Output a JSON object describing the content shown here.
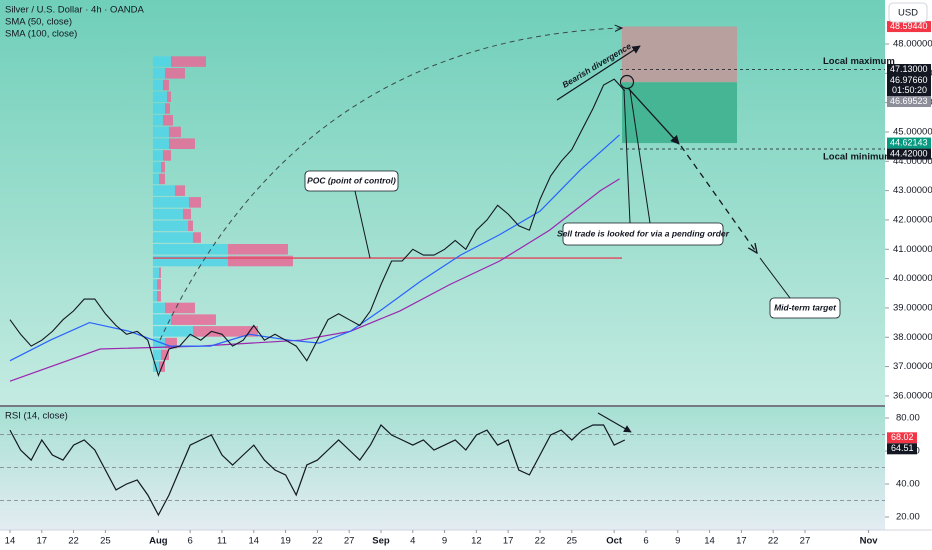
{
  "chart_data": [
    {
      "type": "line",
      "title": "Silver / U.S. Dollar · 4h · OANDA",
      "currency": "USD",
      "x": [
        0,
        1,
        2,
        3,
        4,
        5,
        6,
        7,
        8,
        9,
        10,
        11,
        12,
        13,
        14,
        15,
        16,
        17,
        18,
        19,
        20,
        21,
        22,
        23,
        24,
        25,
        26,
        27,
        28,
        29,
        30,
        31,
        32,
        33,
        34,
        35,
        36,
        37,
        38,
        39,
        40,
        41,
        42,
        43,
        44,
        45,
        46,
        47,
        48,
        49,
        50,
        51,
        52,
        53,
        54,
        55,
        56,
        57,
        58
      ],
      "series": [
        {
          "color": "#131722",
          "values": [
            38.6,
            38.1,
            37.7,
            37.9,
            38.2,
            38.6,
            38.9,
            39.3,
            39.3,
            38.8,
            38.4,
            38.1,
            38.2,
            37.9,
            36.7,
            37.6,
            37.7,
            38.1,
            37.9,
            38.2,
            38.1,
            37.7,
            37.9,
            38.4,
            37.9,
            38.1,
            37.9,
            37.7,
            37.2,
            37.9,
            38.6,
            38.8,
            38.6,
            38.4,
            38.9,
            39.8,
            40.6,
            40.6,
            41.0,
            40.8,
            40.8,
            41.0,
            41.3,
            41.0,
            41.65,
            42.0,
            42.5,
            42.2,
            41.8,
            41.65,
            42.7,
            43.5,
            44.0,
            44.4,
            45.1,
            45.8,
            46.6,
            46.8,
            46.4
          ]
        },
        {
          "name": "SMA (50, close)",
          "color": "#2962ff",
          "x": [
            0,
            3.8,
            7.5,
            11.3,
            15.1,
            18.9,
            22.6,
            26.4,
            29.2,
            32.1,
            34.9,
            38.7,
            42.5,
            46.2,
            50,
            53.8,
            57.5
          ],
          "values": [
            37.2,
            37.9,
            38.5,
            38.2,
            37.7,
            37.7,
            38.1,
            37.9,
            37.8,
            38.2,
            38.9,
            39.9,
            40.8,
            41.5,
            42.3,
            43.7,
            44.9
          ]
        },
        {
          "name": "SMA (100, close)",
          "color": "#9c27b0",
          "x": [
            0,
            8.5,
            17.9,
            27.4,
            32.1,
            36.8,
            41.5,
            46.2,
            50.9,
            55.7,
            57.5
          ],
          "values": [
            36.5,
            37.6,
            37.7,
            37.9,
            38.2,
            38.9,
            39.8,
            40.6,
            41.65,
            43.0,
            43.4
          ]
        }
      ],
      "xlim": [
        -0.94,
        82.55
      ],
      "ylim": [
        35.69,
        49.5
      ],
      "yticks": [
        {
          "value": 36,
          "label": "36.00000"
        },
        {
          "value": 37,
          "label": "37.00000"
        },
        {
          "value": 38,
          "label": "38.00000"
        },
        {
          "value": 39,
          "label": "39.00000"
        },
        {
          "value": 40,
          "label": "40.00000"
        },
        {
          "value": 41,
          "label": "41.00000"
        },
        {
          "value": 42,
          "label": "42.00000"
        },
        {
          "value": 43,
          "label": "43.00000"
        },
        {
          "value": 44,
          "label": "44.00000"
        },
        {
          "value": 45,
          "label": "45.00000"
        },
        {
          "value": 46,
          "label": "46.00000"
        },
        {
          "value": 47,
          "label": "47.00000"
        },
        {
          "value": 48,
          "label": "48.00000"
        }
      ],
      "last_price": {
        "value": 46.9766,
        "label": "46.97660",
        "tag_color": "#131722"
      },
      "countdown": "01:50:20",
      "levels": [
        {
          "name": "Local maximum",
          "value": 47.13,
          "label": "47.13000",
          "tag_color": "#131722"
        },
        {
          "name": "Local minimum",
          "value": 44.42,
          "label": "44.42000",
          "tag_color": "#131722"
        }
      ],
      "trade": {
        "x": [
          57.74,
          68.59
        ],
        "stop": {
          "value": 48.5944,
          "label": "48.59440",
          "tag_color": "#f23645"
        },
        "entry": {
          "value": 46.69523,
          "label": "46.69523",
          "tag_color": "#8c8f99"
        },
        "target": {
          "value": 44.62143,
          "label": "44.62143",
          "tag_color": "#089981"
        },
        "stop_color": "#b7a09d",
        "target_color": "#45b593"
      },
      "poc": {
        "label": "POC (point of control)",
        "value": 40.7,
        "x": [
          13.49,
          57.74
        ],
        "color": "#e0475b"
      },
      "annotations": [
        "Bearish divergence",
        "Sell trade is looked for via a pending order",
        "Mid-term target"
      ],
      "volume_profile": {
        "levels": [
          47.4,
          47.0,
          46.6,
          46.2,
          45.8,
          45.4,
          45.0,
          44.6,
          44.2,
          43.8,
          43.4,
          43.0,
          42.6,
          42.2,
          41.8,
          41.4,
          41.0,
          40.6,
          40.2,
          39.8,
          39.4,
          39.0,
          38.6,
          38.2,
          37.8,
          37.4,
          37.0
        ],
        "up": [
          18,
          12,
          10,
          14,
          12,
          10,
          16,
          16,
          10,
          8,
          6,
          22,
          36,
          30,
          35,
          40,
          75,
          75,
          6,
          4,
          4,
          12,
          18,
          40,
          12,
          8,
          6
        ],
        "down": [
          35,
          20,
          6,
          4,
          5,
          10,
          12,
          26,
          8,
          4,
          6,
          10,
          12,
          8,
          5,
          8,
          60,
          65,
          2,
          4,
          4,
          30,
          45,
          65,
          12,
          8,
          6
        ],
        "up_color": "#4fd3e6",
        "down_color": "#e86a96"
      }
    },
    {
      "type": "line",
      "title": "RSI (14, close)",
      "x": [
        0,
        1,
        2,
        3,
        4,
        5,
        6,
        7,
        8,
        9,
        10,
        11,
        12,
        13,
        14,
        15,
        16,
        17,
        18,
        19,
        20,
        21,
        22,
        23,
        24,
        25,
        26,
        27,
        28,
        29,
        30,
        31,
        32,
        33,
        34,
        35,
        36,
        37,
        38,
        39,
        40,
        41,
        42,
        43,
        44,
        45,
        46,
        47,
        48,
        49,
        50,
        51,
        52,
        53,
        54,
        55,
        56,
        57,
        58
      ],
      "values": [
        72.7,
        60.6,
        54.5,
        66.7,
        57.6,
        54.5,
        63.6,
        66.7,
        60.6,
        48.5,
        36.4,
        40.0,
        42.4,
        33.3,
        21.2,
        33.3,
        48.5,
        63.6,
        66.7,
        69.7,
        57.6,
        51.5,
        57.6,
        63.6,
        54.5,
        48.5,
        45.5,
        33.3,
        51.5,
        54.5,
        60.6,
        66.7,
        60.6,
        54.5,
        63.6,
        75.8,
        69.7,
        66.7,
        63.6,
        66.7,
        60.6,
        63.6,
        66.7,
        60.6,
        69.7,
        72.7,
        63.6,
        66.7,
        48.5,
        45.5,
        57.6,
        69.7,
        72.7,
        66.7,
        72.7,
        75.8,
        75.8,
        63.6,
        66.7
      ],
      "color": "#131722",
      "xlim": [
        -0.94,
        82.55
      ],
      "ylim": [
        12.1,
        86.7
      ],
      "yticks": [
        {
          "value": 20,
          "label": "20.00"
        },
        {
          "value": 40,
          "label": "40.00"
        },
        {
          "value": 60,
          "label": "60.00"
        },
        {
          "value": 80,
          "label": "80.00"
        }
      ],
      "bands": [
        70,
        50,
        30
      ],
      "value_tags": [
        {
          "value": 68.02,
          "label": "68.02",
          "tag_color": "#f23645"
        },
        {
          "value": 64.51,
          "label": "64.51",
          "tag_color": "#131722"
        }
      ],
      "xticks": [
        {
          "value": 0,
          "label": "14"
        },
        {
          "value": 3,
          "label": "17"
        },
        {
          "value": 6,
          "label": "22"
        },
        {
          "value": 9,
          "label": "25"
        },
        {
          "value": 14,
          "label": "Aug"
        },
        {
          "value": 17,
          "label": "6"
        },
        {
          "value": 20,
          "label": "11"
        },
        {
          "value": 23,
          "label": "14"
        },
        {
          "value": 26,
          "label": "19"
        },
        {
          "value": 29,
          "label": "22"
        },
        {
          "value": 32,
          "label": "27"
        },
        {
          "value": 35,
          "label": "Sep"
        },
        {
          "value": 38,
          "label": "4"
        },
        {
          "value": 41,
          "label": "9"
        },
        {
          "value": 44,
          "label": "12"
        },
        {
          "value": 47,
          "label": "17"
        },
        {
          "value": 50,
          "label": "22"
        },
        {
          "value": 53,
          "label": "25"
        },
        {
          "value": 57,
          "label": "Oct"
        },
        {
          "value": 60,
          "label": "6"
        },
        {
          "value": 63,
          "label": "9"
        },
        {
          "value": 66,
          "label": "14"
        },
        {
          "value": 69,
          "label": "17"
        },
        {
          "value": 72,
          "label": "22"
        },
        {
          "value": 75,
          "label": "27"
        },
        {
          "value": 81,
          "label": "Nov"
        }
      ]
    }
  ]
}
